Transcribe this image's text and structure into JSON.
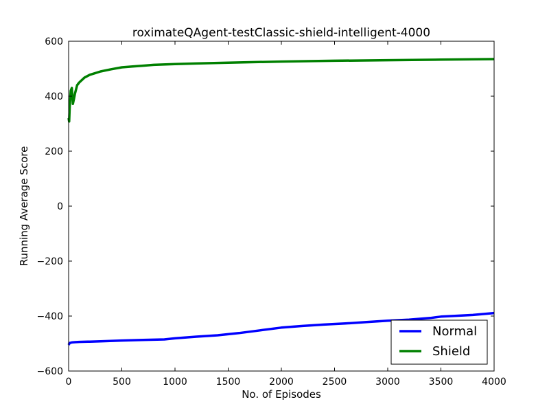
{
  "chart_data": {
    "type": "line",
    "title": "roximateQAgent-testClassic-shield-intelligent-4000",
    "xlabel": "No. of Episodes",
    "ylabel": "Running Average Score",
    "xlim": [
      0,
      4000
    ],
    "ylim": [
      -600,
      600
    ],
    "xticks": [
      0,
      500,
      1000,
      1500,
      2000,
      2500,
      3000,
      3500,
      4000
    ],
    "yticks": [
      -600,
      -400,
      -200,
      0,
      200,
      400,
      600
    ],
    "grid": false,
    "legend_position": "lower-right",
    "series": [
      {
        "name": "Normal",
        "color": "#0000ff",
        "x": [
          0,
          10,
          30,
          60,
          100,
          200,
          300,
          500,
          700,
          900,
          1000,
          1200,
          1400,
          1600,
          1800,
          2000,
          2200,
          2400,
          2600,
          2800,
          3000,
          3200,
          3400,
          3500,
          3600,
          3800,
          4000
        ],
        "y": [
          -505,
          -498,
          -496,
          -495,
          -494,
          -493,
          -492,
          -489,
          -487,
          -485,
          -481,
          -475,
          -470,
          -462,
          -452,
          -442,
          -436,
          -431,
          -427,
          -422,
          -417,
          -413,
          -407,
          -402,
          -400,
          -396,
          -389
        ]
      },
      {
        "name": "Shield",
        "color": "#008000",
        "x": [
          0,
          5,
          10,
          20,
          30,
          40,
          50,
          60,
          80,
          100,
          150,
          200,
          250,
          300,
          400,
          500,
          600,
          700,
          800,
          1000,
          1200,
          1500,
          2000,
          2500,
          3000,
          3500,
          4000
        ],
        "y": [
          320,
          308,
          360,
          420,
          430,
          372,
          390,
          410,
          440,
          450,
          468,
          478,
          484,
          490,
          498,
          505,
          508,
          511,
          514,
          517,
          519,
          522,
          526,
          529,
          531,
          533,
          535
        ]
      }
    ]
  }
}
